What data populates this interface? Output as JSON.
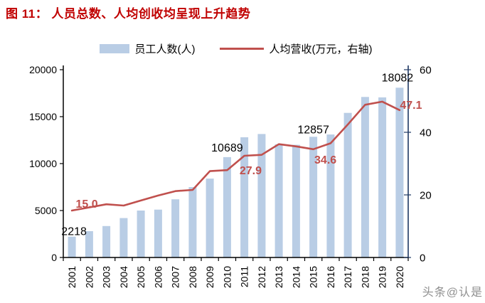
{
  "header": {
    "title": "图 11： 人员总数、人均创收均呈现上升趋势",
    "title_color": "#C00000"
  },
  "legend": [
    {
      "label": "员工人数(人)",
      "type": "bar"
    },
    {
      "label": "人均营收(万元，右轴)",
      "type": "line"
    }
  ],
  "chart_data": {
    "type": "bar",
    "subtype": "bar+line combo, dual axis",
    "categories": [
      "2001",
      "2002",
      "2003",
      "2004",
      "2005",
      "2006",
      "2007",
      "2008",
      "2009",
      "2010",
      "2011",
      "2012",
      "2013",
      "2014",
      "2015",
      "2016",
      "2017",
      "2018",
      "2019",
      "2020"
    ],
    "series": [
      {
        "name": "员工人数(人)",
        "type": "bar",
        "axis": "left",
        "color": "#B9CDE5",
        "values": [
          2218,
          2800,
          3350,
          4200,
          5000,
          5100,
          6200,
          7500,
          8400,
          10689,
          12800,
          13150,
          12050,
          12000,
          12857,
          13100,
          15400,
          17100,
          17050,
          18082
        ]
      },
      {
        "name": "人均营收(万元，右轴)",
        "type": "line",
        "axis": "right",
        "color": "#C0504D",
        "values": [
          15.0,
          16.0,
          17.0,
          16.6,
          18.2,
          19.8,
          21.2,
          21.6,
          27.6,
          27.9,
          32.5,
          32.8,
          36.2,
          35.5,
          34.6,
          36.5,
          42.5,
          48.8,
          49.8,
          47.1
        ]
      }
    ],
    "left_axis": {
      "min": 0,
      "max": 20000,
      "ticks": [
        0,
        5000,
        10000,
        15000,
        20000
      ]
    },
    "right_axis": {
      "min": 0,
      "max": 60,
      "ticks": [
        0,
        20,
        40,
        60
      ]
    },
    "grid": false,
    "legend_position": "top",
    "annotations": [
      {
        "series": "bar",
        "category": "2001",
        "text": "2218"
      },
      {
        "series": "bar",
        "category": "2010",
        "text": "10689"
      },
      {
        "series": "bar",
        "category": "2015",
        "text": "12857"
      },
      {
        "series": "bar",
        "category": "2020",
        "text": "18082"
      },
      {
        "series": "line",
        "category": "2001",
        "text": "15.0"
      },
      {
        "series": "line",
        "category": "2010",
        "text": "27.9"
      },
      {
        "series": "line",
        "category": "2015",
        "text": "34.6"
      },
      {
        "series": "line",
        "category": "2020",
        "text": "47.1"
      }
    ],
    "colors": {
      "axis": "#000000",
      "right_axis_line": "#1F3864",
      "bar_annotation": "#000000",
      "line_annotation": "#C0504D",
      "tick_label": "#000000"
    }
  },
  "watermark": {
    "text": "头条@认是"
  }
}
